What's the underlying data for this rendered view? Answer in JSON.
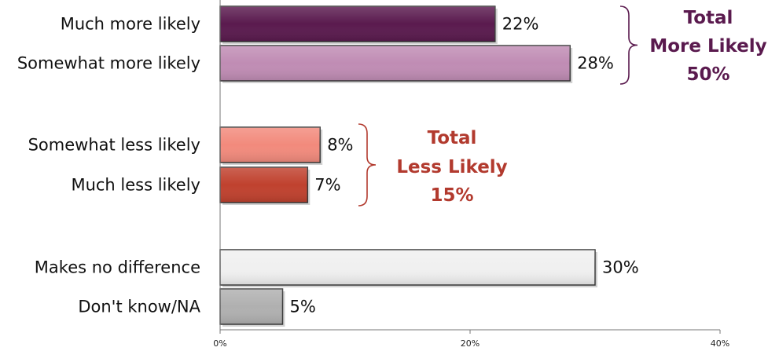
{
  "chart_data": {
    "type": "bar",
    "orientation": "horizontal",
    "categories": [
      "Much more likely",
      "Somewhat more likely",
      "Somewhat less likely",
      "Much less likely",
      "Makes no difference",
      "Don't know/NA"
    ],
    "values": [
      22,
      28,
      8,
      7,
      30,
      5
    ],
    "value_labels": [
      "22%",
      "28%",
      "8%",
      "7%",
      "30%",
      "5%"
    ],
    "bar_colors": [
      "#5a1a4e",
      "#c08cb4",
      "#f28a7c",
      "#c0412e",
      "#f0f0f0",
      "#b0b0b0"
    ],
    "xlim": [
      0,
      40
    ],
    "xticks": [
      0,
      20,
      40
    ],
    "xtick_labels": [
      "0%",
      "20%",
      "40%"
    ],
    "grid": false,
    "groups": [
      {
        "label_lines": [
          "Total",
          "More Likely",
          "50%"
        ],
        "color": "#5a1a4e",
        "members": [
          0,
          1
        ]
      },
      {
        "label_lines": [
          "Total",
          "Less Likely",
          "15%"
        ],
        "color": "#b23a2e",
        "members": [
          2,
          3
        ]
      }
    ]
  }
}
